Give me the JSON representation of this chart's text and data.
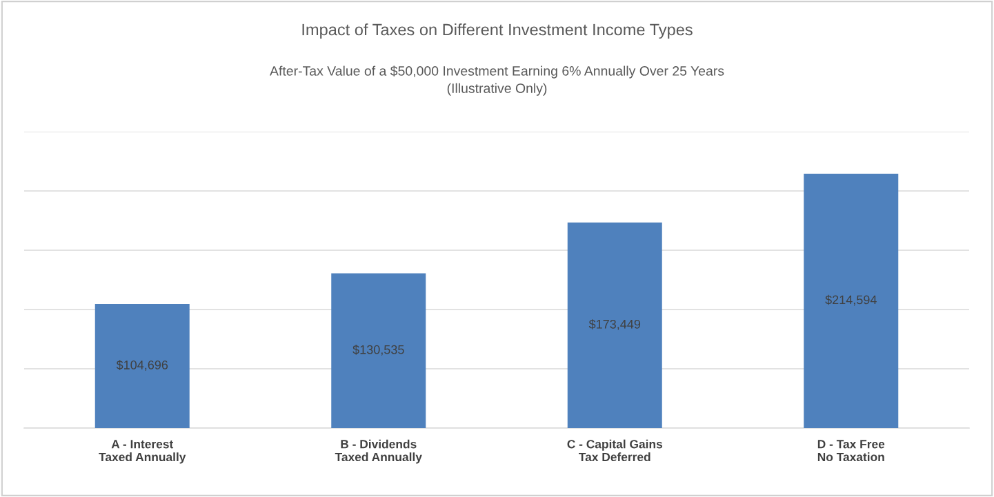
{
  "chart_data": {
    "type": "bar",
    "title": "Impact of Taxes on Different Investment Income Types",
    "subtitle": "After-Tax Value of a $50,000 Investment Earning 6% Annually Over 25 Years\n(Illustrative Only)",
    "categories": [
      "A - Interest\nTaxed Annually",
      "B - Dividends\nTaxed Annually",
      "C - Capital Gains\nTax Deferred",
      "D - Tax Free\nNo Taxation"
    ],
    "values": [
      104696,
      130535,
      173449,
      214594
    ],
    "value_labels": [
      "$104,696",
      "$130,535",
      "$173,449",
      "$214,594"
    ],
    "color": "#4f81bd",
    "ylim": [
      0,
      250000
    ],
    "yticks": [
      {
        "value": 0,
        "label": null
      },
      {
        "value": 50000,
        "label": null
      },
      {
        "value": 100000,
        "label": null
      },
      {
        "value": 150000,
        "label": null
      },
      {
        "value": 200000,
        "label": null
      },
      {
        "value": 250000,
        "label": null
      }
    ],
    "tick_labels": "x",
    "grid": "y"
  }
}
